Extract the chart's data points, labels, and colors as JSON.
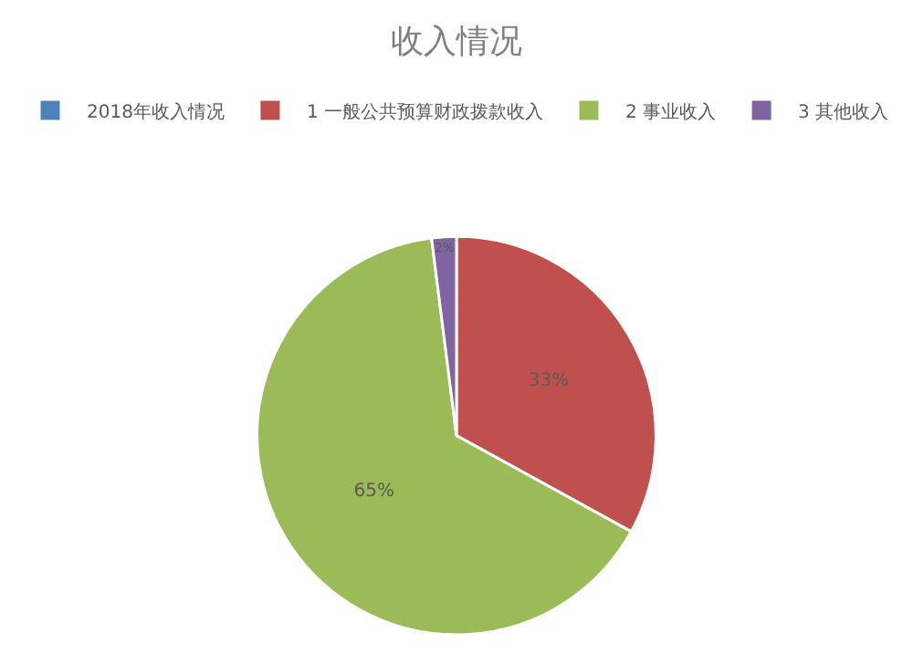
{
  "chart_data": {
    "type": "pie",
    "title": "收入情况",
    "categories": [
      "2018年收入情况",
      "1 一般公共预算财政拨款收入",
      "2 事业收入",
      "3 其他收入"
    ],
    "values": [
      0,
      33,
      65,
      2
    ],
    "colors": [
      "#4f81bd",
      "#c0504d",
      "#9bbb59",
      "#8064a2"
    ],
    "value_labels": [
      null,
      "33%",
      "65%",
      "2%"
    ],
    "legend": "top"
  }
}
